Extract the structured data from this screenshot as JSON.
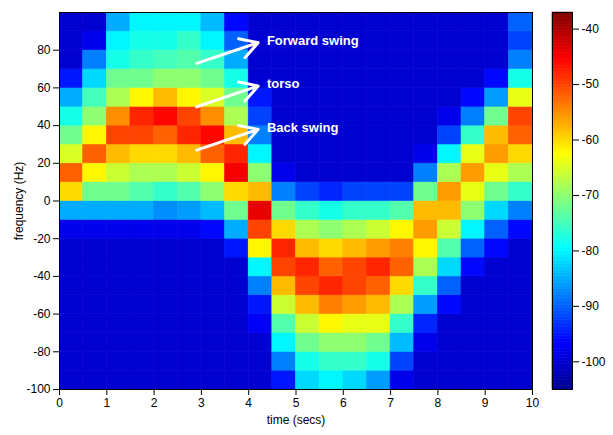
{
  "chart_data": {
    "type": "heatmap",
    "x_label": "time (secs)",
    "y_label": "frequency (Hz)",
    "xlim": [
      0,
      10
    ],
    "xticks": [
      0,
      1,
      2,
      3,
      4,
      5,
      6,
      7,
      8,
      9,
      10
    ],
    "ylim": [
      -100,
      100
    ],
    "yticks": [
      -100,
      -80,
      -60,
      -40,
      -20,
      0,
      20,
      40,
      60,
      80
    ],
    "time_bins": [
      0,
      0.5,
      1,
      1.5,
      2,
      2.5,
      3,
      3.5,
      4,
      4.5,
      5,
      5.5,
      6,
      6.5,
      7,
      7.5,
      8,
      8.5,
      9,
      9.5,
      10
    ],
    "frequency_bins": [
      -100,
      -90,
      -80,
      -70,
      -60,
      -50,
      -40,
      -30,
      -20,
      -10,
      0,
      10,
      20,
      30,
      40,
      50,
      60,
      70,
      80,
      90,
      100
    ],
    "values": [
      [
        -100,
        -100,
        -100,
        -100,
        -100,
        -100,
        -100,
        -100,
        -98,
        -85,
        -60,
        -52,
        -65,
        -72,
        -78,
        -85,
        -95,
        -100,
        -100,
        -100
      ],
      [
        -100,
        -100,
        -100,
        -100,
        -100,
        -100,
        -100,
        -100,
        -98,
        -85,
        -72,
        -62,
        -52,
        -62,
        -70,
        -75,
        -82,
        -88,
        -98,
        -100
      ],
      [
        -100,
        -100,
        -100,
        -100,
        -100,
        -100,
        -100,
        -100,
        -98,
        -85,
        -72,
        -66,
        -58,
        -50,
        -55,
        -68,
        -72,
        -78,
        -80,
        -85
      ],
      [
        -100,
        -100,
        -100,
        -100,
        -100,
        -100,
        -100,
        -100,
        -98,
        -85,
        -74,
        -68,
        -60,
        -50,
        -48,
        -62,
        -72,
        -76,
        -78,
        -80
      ],
      [
        -100,
        -100,
        -100,
        -100,
        -100,
        -100,
        -100,
        -100,
        -98,
        -87,
        -76,
        -68,
        -60,
        -52,
        -46,
        -58,
        -70,
        -75,
        -78,
        -80
      ],
      [
        -100,
        -100,
        -100,
        -100,
        -100,
        -100,
        -100,
        -100,
        -98,
        -86,
        -74,
        -66,
        -58,
        -48,
        -50,
        -62,
        -70,
        -74,
        -76,
        -80
      ],
      [
        -100,
        -100,
        -100,
        -100,
        -100,
        -100,
        -100,
        -100,
        -96,
        -84,
        -70,
        -62,
        -52,
        -46,
        -55,
        -65,
        -72,
        -76,
        -80,
        -84
      ],
      [
        -100,
        -100,
        -100,
        -100,
        -100,
        -100,
        -100,
        -95,
        -85,
        -72,
        -60,
        -45,
        -48,
        -58,
        -68,
        -72,
        -78,
        -85,
        -90,
        -96
      ],
      [
        -100,
        -100,
        -100,
        -97,
        -95,
        -88,
        -80,
        -62,
        -50,
        -44,
        -58,
        -70,
        -80,
        -88,
        -92,
        -95,
        -100,
        -100,
        -100,
        -100
      ],
      [
        -95,
        -88,
        -80,
        -74,
        -66,
        -58,
        -50,
        -48,
        -60,
        -72,
        -88,
        -98,
        -100,
        -100,
        -100,
        -100,
        -100,
        -100,
        -100,
        -100
      ],
      [
        -82,
        -78,
        -72,
        -66,
        -58,
        -50,
        -48,
        -58,
        -68,
        -76,
        -92,
        -100,
        -100,
        -100,
        -100,
        -100,
        -100,
        -100,
        -100,
        -100
      ],
      [
        -80,
        -76,
        -70,
        -62,
        -54,
        -48,
        -52,
        -60,
        -70,
        -78,
        -94,
        -100,
        -100,
        -100,
        -100,
        -100,
        -100,
        -100,
        -100,
        -100
      ],
      [
        -82,
        -76,
        -70,
        -64,
        -56,
        -50,
        -50,
        -58,
        -68,
        -76,
        -92,
        -100,
        -100,
        -100,
        -100,
        -100,
        -100,
        -100,
        -100,
        -100
      ],
      [
        -86,
        -78,
        -72,
        -64,
        -58,
        -52,
        -48,
        -56,
        -66,
        -76,
        -92,
        -100,
        -100,
        -100,
        -100,
        -100,
        -100,
        -100,
        -100,
        -100
      ],
      [
        -98,
        -92,
        -84,
        -76,
        -68,
        -60,
        -52,
        -54,
        -62,
        -74,
        -92,
        -100,
        -100,
        -100,
        -100,
        -100,
        -100,
        -100,
        -100,
        -100
      ],
      [
        -100,
        -100,
        -98,
        -94,
        -86,
        -76,
        -68,
        -62,
        -56,
        -58,
        -72,
        -88,
        -98,
        -100,
        -100,
        -100,
        -100,
        -100,
        -100,
        -100
      ],
      [
        -100,
        -100,
        -100,
        -100,
        -96,
        -90,
        -82,
        -74,
        -66,
        -58,
        -56,
        -68,
        -80,
        -92,
        -98,
        -100,
        -100,
        -100,
        -100,
        -100
      ],
      [
        -100,
        -100,
        -100,
        -100,
        -100,
        -100,
        -96,
        -90,
        -80,
        -70,
        -64,
        -56,
        -64,
        -76,
        -88,
        -96,
        -100,
        -100,
        -100,
        -100
      ],
      [
        -100,
        -100,
        -100,
        -100,
        -100,
        -100,
        -100,
        -96,
        -90,
        -82,
        -72,
        -64,
        -56,
        -58,
        -72,
        -86,
        -96,
        -100,
        -100,
        -100
      ],
      [
        -100,
        -100,
        -100,
        -100,
        -100,
        -100,
        -100,
        -100,
        -96,
        -88,
        -76,
        -68,
        -60,
        -52,
        -50,
        -64,
        -78,
        -88,
        -92,
        -90
      ]
    ],
    "colorbar": {
      "range": [
        -105,
        -37
      ],
      "ticks": [
        -40,
        -50,
        -60,
        -70,
        -80,
        -90,
        -100
      ]
    },
    "annotations": [
      {
        "text": "Forward swing",
        "x": 4.3,
        "y": 85
      },
      {
        "text": "torso",
        "x": 4.3,
        "y": 62
      },
      {
        "text": "Back swing",
        "x": 4.3,
        "y": 39
      }
    ]
  }
}
